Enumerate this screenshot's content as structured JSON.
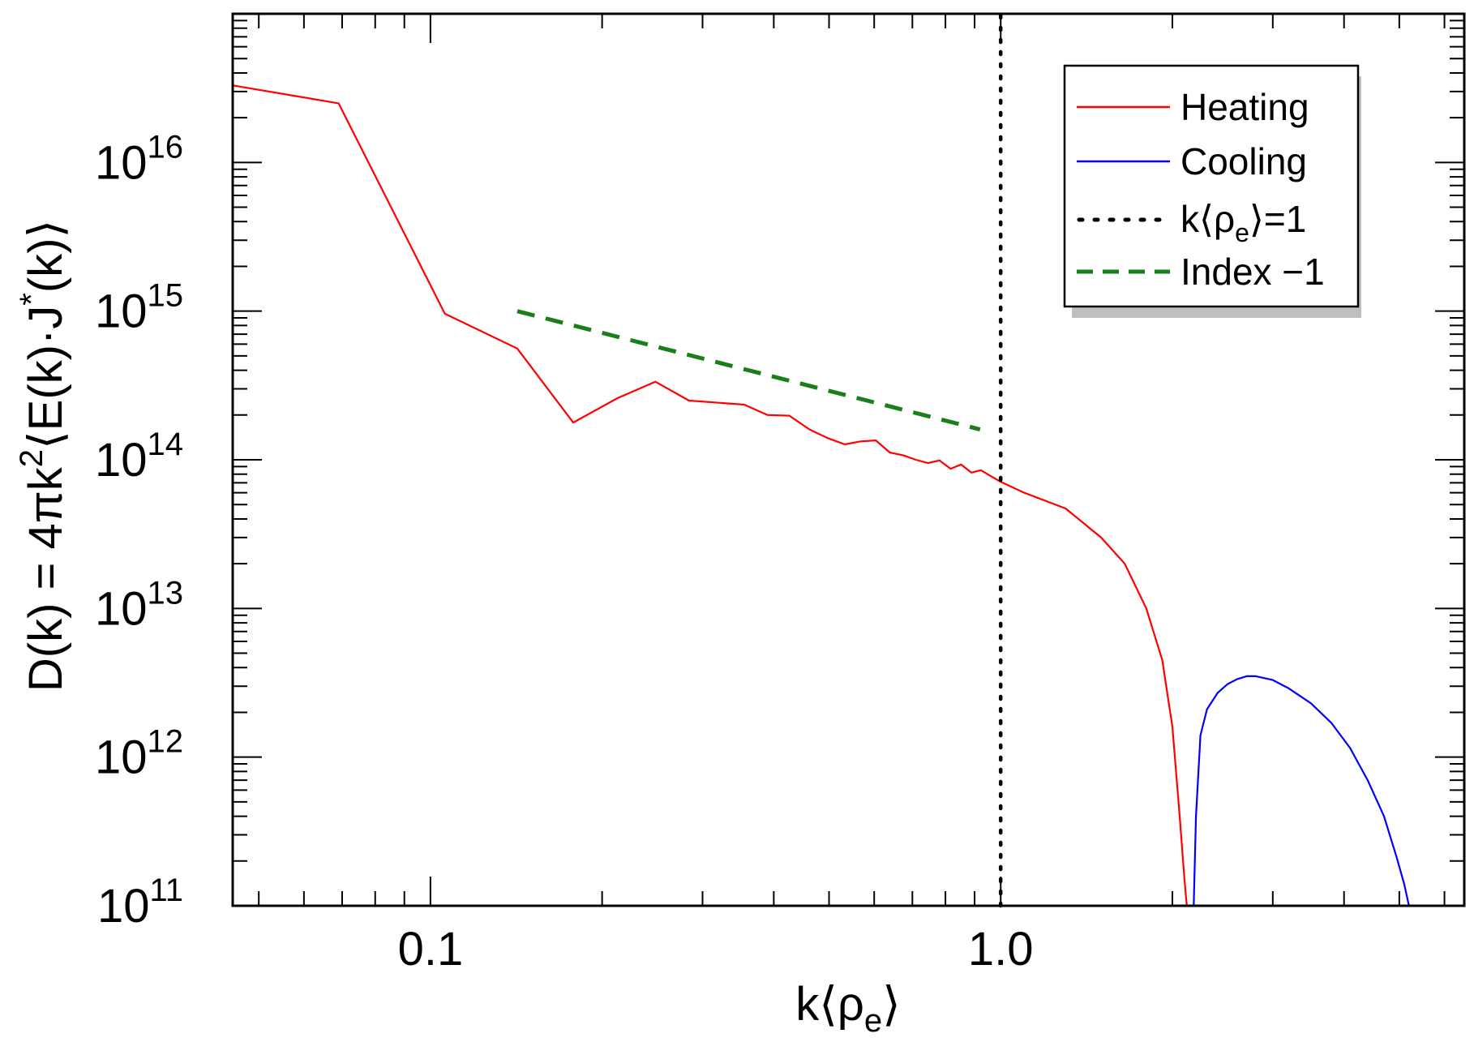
{
  "chart_data": {
    "type": "line",
    "xscale": "log",
    "yscale": "log",
    "xlim": [
      0.045,
      6.5
    ],
    "ylim": [
      100000000000.0,
      1e+17
    ],
    "xlabel": {
      "base": "k⟨ρ",
      "sub": "e",
      "end": "⟩"
    },
    "ylabel": {
      "p1": "D(k) = 4πk",
      "sup1": "2",
      "p2": "⟨E(k)·J",
      "sup2": "*",
      "p3": "(k)⟩"
    },
    "x_ticks": [
      {
        "value": 0.1,
        "label": "0.1"
      },
      {
        "value": 1.0,
        "label": "1.0"
      }
    ],
    "y_ticks": [
      {
        "exp": 11,
        "base": "10",
        "sup": "11"
      },
      {
        "exp": 12,
        "base": "10",
        "sup": "12"
      },
      {
        "exp": 13,
        "base": "10",
        "sup": "13"
      },
      {
        "exp": 14,
        "base": "10",
        "sup": "14"
      },
      {
        "exp": 15,
        "base": "10",
        "sup": "15"
      },
      {
        "exp": 16,
        "base": "10",
        "sup": "16"
      }
    ],
    "series": [
      {
        "name": "Heating",
        "color": "#ff0000",
        "style": "solid",
        "x": [
          0.045,
          0.069,
          0.106,
          0.142,
          0.178,
          0.213,
          0.248,
          0.284,
          0.355,
          0.39,
          0.426,
          0.462,
          0.497,
          0.533,
          0.568,
          0.604,
          0.639,
          0.675,
          0.71,
          0.746,
          0.781,
          0.817,
          0.852,
          0.888,
          0.923,
          0.959,
          0.994,
          1.1,
          1.3,
          1.5,
          1.65,
          1.8,
          1.92,
          2.0,
          2.06,
          2.1,
          2.12
        ],
        "y": [
          3.3e+16,
          2.5e+16,
          960000000000000.0,
          560000000000000.0,
          178000000000000.0,
          260000000000000.0,
          335000000000000.0,
          250000000000000.0,
          235000000000000.0,
          200000000000000.0,
          198000000000000.0,
          160000000000000.0,
          140000000000000.0,
          127000000000000.0,
          133000000000000.0,
          135000000000000.0,
          112000000000000.0,
          107000000000000.0,
          100000000000000.0,
          95000000000000.0,
          99000000000000.0,
          87000000000000.0,
          93000000000000.0,
          82000000000000.0,
          85000000000000.0,
          78000000000000.0,
          72000000000000.0,
          60000000000000.0,
          47000000000000.0,
          30000000000000.0,
          20000000000000.0,
          10000000000000.0,
          4500000000000.0,
          1600000000000.0,
          400000000000.0,
          150000000000.0,
          100000000000.0
        ]
      },
      {
        "name": "Cooling",
        "color": "#0000ff",
        "style": "solid",
        "x": [
          2.18,
          2.2,
          2.24,
          2.3,
          2.4,
          2.5,
          2.6,
          2.7,
          2.8,
          3.0,
          3.2,
          3.5,
          3.8,
          4.1,
          4.4,
          4.7,
          4.95,
          5.1,
          5.2
        ],
        "y": [
          100000000000.0,
          400000000000.0,
          1400000000000.0,
          2100000000000.0,
          2700000000000.0,
          3100000000000.0,
          3350000000000.0,
          3500000000000.0,
          3500000000000.0,
          3300000000000.0,
          2900000000000.0,
          2300000000000.0,
          1700000000000.0,
          1150000000000.0,
          700000000000.0,
          400000000000.0,
          210000000000.0,
          140000000000.0,
          100000000000.0
        ]
      },
      {
        "name": "k⟨ρe⟩=1",
        "color": "#000000",
        "style": "dotted",
        "x": [
          1.0,
          1.0
        ],
        "y": [
          100000000000.0,
          1e+17
        ]
      },
      {
        "name": "Index −1",
        "color": "#1a7f1a",
        "style": "dashed",
        "x": [
          0.142,
          0.92
        ],
        "y": [
          1000000000000000.0,
          160000000000000.0
        ]
      }
    ],
    "legend": {
      "placement": "top-right",
      "entries": [
        {
          "label": "Heating",
          "color": "#ff0000",
          "style": "solid"
        },
        {
          "label": "Cooling",
          "color": "#0000ff",
          "style": "solid"
        },
        {
          "label_base": "k⟨ρ",
          "label_sub": "e",
          "label_end": "⟩=1",
          "color": "#000000",
          "style": "dotted"
        },
        {
          "label": "Index −1",
          "color": "#1a7f1a",
          "style": "dashed"
        }
      ]
    }
  }
}
